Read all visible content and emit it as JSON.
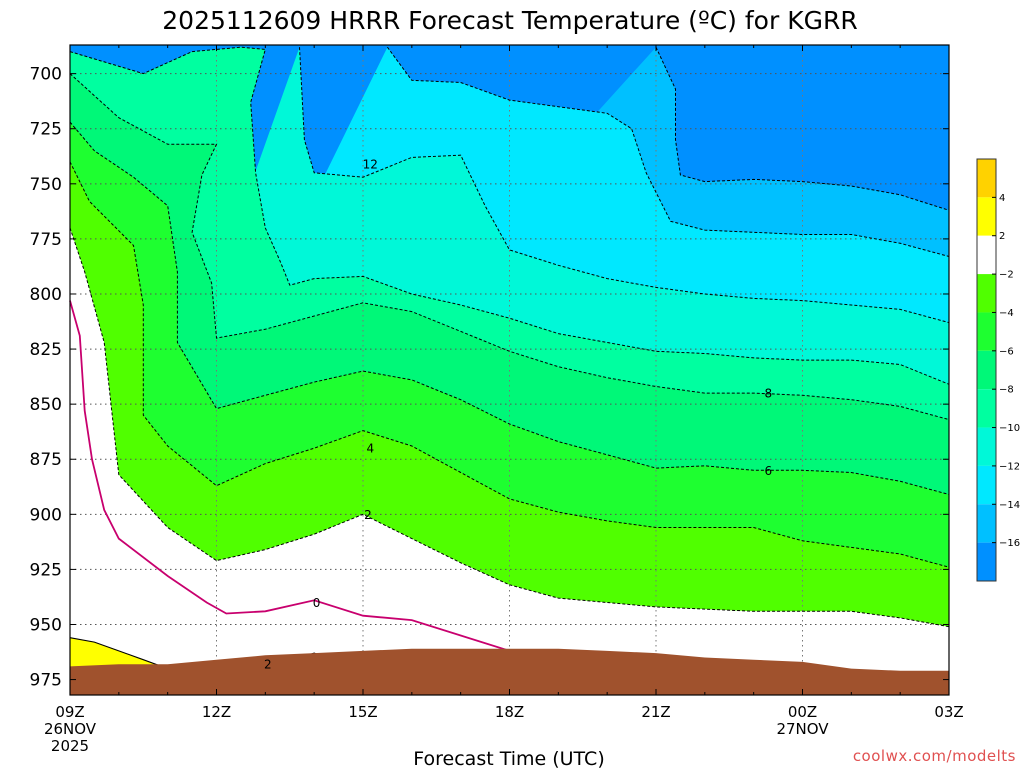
{
  "chart_data": {
    "type": "heatmap",
    "subtype": "filled-contour",
    "title": "2025112609 HRRR Forecast Temperature (ºC) for KGRR",
    "xlabel": "Forecast Time (UTC)",
    "ylabel": "",
    "credit": "coolwx.com/modelts",
    "x_ticks": [
      {
        "x": 0,
        "lines": [
          "09Z",
          "26NOV",
          "2025"
        ]
      },
      {
        "x": 3,
        "lines": [
          "12Z"
        ]
      },
      {
        "x": 6,
        "lines": [
          "15Z"
        ]
      },
      {
        "x": 9,
        "lines": [
          "18Z"
        ]
      },
      {
        "x": 12,
        "lines": [
          "21Z"
        ]
      },
      {
        "x": 15,
        "lines": [
          "00Z",
          "27NOV"
        ]
      },
      {
        "x": 18,
        "lines": [
          "03Z"
        ]
      }
    ],
    "xlim": [
      0,
      18
    ],
    "ylim": [
      687,
      982
    ],
    "y_scale": "pressure",
    "y_inverted": true,
    "y_ticks": [
      700,
      725,
      750,
      775,
      800,
      825,
      850,
      875,
      900,
      925,
      950,
      975
    ],
    "grid": true,
    "colorbar": {
      "levels": [
        -16,
        -14,
        -12,
        -10,
        -8,
        -6,
        -4,
        -2,
        2,
        4
      ],
      "level_labels": [
        "4",
        "2",
        "−2",
        "−4",
        "−6",
        "−8",
        "−10",
        "−12",
        "−14",
        "−16"
      ],
      "bins": [
        {
          "range": "above 4",
          "color": "#ffd200"
        },
        {
          "range": "2 to 4",
          "color": "#ffff00"
        },
        {
          "range": "-2 to 2",
          "color": "#ffffff"
        },
        {
          "range": "-4 to -2",
          "color": "#50ff00"
        },
        {
          "range": "-6 to -4",
          "color": "#1eff30"
        },
        {
          "range": "-8 to -6",
          "color": "#00f878"
        },
        {
          "range": "-10 to -8",
          "color": "#00ffa0"
        },
        {
          "range": "-12 to -10",
          "color": "#00f8d8"
        },
        {
          "range": "-14 to -12",
          "color": "#00e8ff"
        },
        {
          "range": "-16 to -14",
          "color": "#00c0ff"
        },
        {
          "range": "below -16",
          "color": "#0090ff"
        }
      ]
    },
    "zero_line_color": "#c8006e",
    "ground_color": "#a0522d",
    "contours": [
      {
        "level": 2,
        "points": [
          [
            0,
            956
          ],
          [
            0.5,
            958
          ],
          [
            1,
            962
          ],
          [
            1.5,
            966
          ],
          [
            2,
            970
          ],
          [
            2.5,
            975
          ],
          [
            3,
            967
          ],
          [
            4,
            970
          ],
          [
            5,
            963
          ],
          [
            6,
            972
          ],
          [
            7,
            968
          ],
          [
            7.6,
            975
          ]
        ]
      },
      {
        "level": 0,
        "points": [
          [
            0,
            803
          ],
          [
            0.2,
            819
          ],
          [
            0.3,
            853
          ],
          [
            0.45,
            875
          ],
          [
            0.7,
            898
          ],
          [
            1,
            911
          ],
          [
            2,
            928
          ],
          [
            2.8,
            940
          ],
          [
            3.2,
            945
          ],
          [
            4,
            944
          ],
          [
            5,
            939
          ],
          [
            6,
            946
          ],
          [
            7,
            948
          ],
          [
            8,
            955
          ],
          [
            9,
            962
          ],
          [
            10,
            967
          ],
          [
            11,
            970
          ],
          [
            12,
            974
          ],
          [
            12.8,
            977
          ]
        ]
      },
      {
        "level": -2,
        "points": [
          [
            0,
            770
          ],
          [
            0.3,
            790
          ],
          [
            0.7,
            822
          ],
          [
            1,
            882
          ],
          [
            2,
            906
          ],
          [
            3,
            921
          ],
          [
            4,
            916
          ],
          [
            5,
            909
          ],
          [
            6,
            900
          ],
          [
            7,
            911
          ],
          [
            8,
            922
          ],
          [
            9,
            932
          ],
          [
            10,
            938
          ],
          [
            11,
            940
          ],
          [
            12,
            942
          ],
          [
            13,
            943
          ],
          [
            14,
            944
          ],
          [
            15,
            944
          ],
          [
            16,
            944
          ],
          [
            17,
            947
          ],
          [
            18,
            951
          ]
        ]
      },
      {
        "level": -4,
        "points": [
          [
            0,
            740
          ],
          [
            0.4,
            758
          ],
          [
            1.3,
            778
          ],
          [
            1.5,
            805
          ],
          [
            1.5,
            820
          ],
          [
            1.5,
            855
          ],
          [
            2,
            869
          ],
          [
            3,
            887
          ],
          [
            4,
            877
          ],
          [
            5,
            870
          ],
          [
            6,
            862
          ],
          [
            7,
            869
          ],
          [
            8,
            881
          ],
          [
            9,
            893
          ],
          [
            10,
            899
          ],
          [
            11,
            903
          ],
          [
            12,
            906
          ],
          [
            13,
            906
          ],
          [
            14,
            906
          ],
          [
            15,
            912
          ],
          [
            16,
            915
          ],
          [
            17,
            918
          ],
          [
            18,
            924
          ]
        ]
      },
      {
        "level": -6,
        "points": [
          [
            0,
            722
          ],
          [
            0.5,
            735
          ],
          [
            1.3,
            747
          ],
          [
            2,
            760
          ],
          [
            2.2,
            790
          ],
          [
            2.2,
            810
          ],
          [
            2.2,
            822
          ],
          [
            3,
            852
          ],
          [
            4,
            846
          ],
          [
            5,
            840
          ],
          [
            6,
            835
          ],
          [
            7,
            839
          ],
          [
            8,
            848
          ],
          [
            9,
            859
          ],
          [
            10,
            867
          ],
          [
            11,
            873
          ],
          [
            12,
            879
          ],
          [
            13,
            878
          ],
          [
            14,
            880
          ],
          [
            15,
            880
          ],
          [
            16,
            881
          ],
          [
            17,
            885
          ],
          [
            18,
            891
          ]
        ]
      },
      {
        "level": -8,
        "points": [
          [
            0,
            700
          ],
          [
            0.5,
            710
          ],
          [
            1,
            720
          ],
          [
            2,
            732
          ],
          [
            3,
            732
          ],
          [
            2.7,
            746
          ],
          [
            2.5,
            772
          ],
          [
            2.9,
            795
          ],
          [
            3,
            820
          ],
          [
            4,
            816
          ],
          [
            5,
            810
          ],
          [
            6,
            804
          ],
          [
            7,
            808
          ],
          [
            8,
            817
          ],
          [
            9,
            826
          ],
          [
            10,
            833
          ],
          [
            11,
            838
          ],
          [
            12,
            842
          ],
          [
            13,
            845
          ],
          [
            14,
            845
          ],
          [
            15,
            846
          ],
          [
            16,
            848
          ],
          [
            17,
            851
          ],
          [
            18,
            857
          ]
        ]
      },
      {
        "level": -10,
        "points": [
          [
            0,
            690
          ],
          [
            1.5,
            700
          ],
          [
            2.5,
            690
          ],
          [
            3.5,
            688
          ],
          [
            4,
            689
          ],
          [
            3.7,
            713
          ],
          [
            3.8,
            745
          ],
          [
            4,
            770
          ],
          [
            4.3,
            785
          ],
          [
            4.5,
            796
          ],
          [
            5,
            793
          ],
          [
            6,
            792
          ],
          [
            7,
            800
          ],
          [
            8,
            805
          ],
          [
            9,
            811
          ],
          [
            10,
            818
          ],
          [
            11,
            822
          ],
          [
            12,
            826
          ],
          [
            13,
            827
          ],
          [
            14,
            829
          ],
          [
            15,
            830
          ],
          [
            16,
            830
          ],
          [
            17,
            832
          ],
          [
            18,
            841
          ]
        ]
      },
      {
        "level": -12,
        "points": [
          [
            4.7,
            688
          ],
          [
            4.8,
            730
          ],
          [
            5,
            745
          ],
          [
            6,
            747
          ],
          [
            7,
            738
          ],
          [
            8,
            737
          ],
          [
            8.5,
            760
          ],
          [
            9,
            780
          ],
          [
            10,
            787
          ],
          [
            11,
            793
          ],
          [
            12,
            797
          ],
          [
            13,
            800
          ],
          [
            14,
            802
          ],
          [
            15,
            803
          ],
          [
            16,
            805
          ],
          [
            17,
            807
          ],
          [
            18,
            813
          ]
        ]
      },
      {
        "level": -14,
        "points": [
          [
            6.5,
            688
          ],
          [
            7,
            703
          ],
          [
            8,
            704
          ],
          [
            9,
            712
          ],
          [
            10,
            715
          ],
          [
            11,
            718
          ],
          [
            11.5,
            725
          ],
          [
            11.8,
            745
          ],
          [
            12.3,
            767
          ],
          [
            13,
            771
          ],
          [
            14,
            772
          ],
          [
            15,
            773
          ],
          [
            16,
            773
          ],
          [
            17,
            777
          ],
          [
            18,
            783
          ]
        ]
      },
      {
        "level": -16,
        "points": [
          [
            12,
            688
          ],
          [
            12.4,
            707
          ],
          [
            12.4,
            730
          ],
          [
            12.5,
            746
          ],
          [
            13,
            749
          ],
          [
            14,
            748
          ],
          [
            15,
            749
          ],
          [
            16,
            751
          ],
          [
            17,
            755
          ],
          [
            18,
            762
          ]
        ]
      }
    ],
    "contour_labels": [
      {
        "text": "12",
        "x": 6.15,
        "y": 741
      },
      {
        "text": "8",
        "x": 14.3,
        "y": 845
      },
      {
        "text": "6",
        "x": 14.3,
        "y": 880
      },
      {
        "text": "4",
        "x": 6.15,
        "y": 870
      },
      {
        "text": "2",
        "x": 6.1,
        "y": 900
      },
      {
        "text": "0",
        "x": 5.05,
        "y": 940
      },
      {
        "text": "2",
        "x": 4.05,
        "y": 968
      }
    ],
    "ground_top": [
      [
        0,
        969
      ],
      [
        1,
        968
      ],
      [
        2,
        968
      ],
      [
        3,
        966
      ],
      [
        4,
        964
      ],
      [
        5,
        963
      ],
      [
        6,
        962
      ],
      [
        7,
        961
      ],
      [
        8,
        961
      ],
      [
        9,
        961
      ],
      [
        10,
        961
      ],
      [
        11,
        962
      ],
      [
        12,
        963
      ],
      [
        13,
        965
      ],
      [
        14,
        966
      ],
      [
        15,
        967
      ],
      [
        16,
        970
      ],
      [
        17,
        971
      ],
      [
        18,
        971
      ]
    ]
  }
}
